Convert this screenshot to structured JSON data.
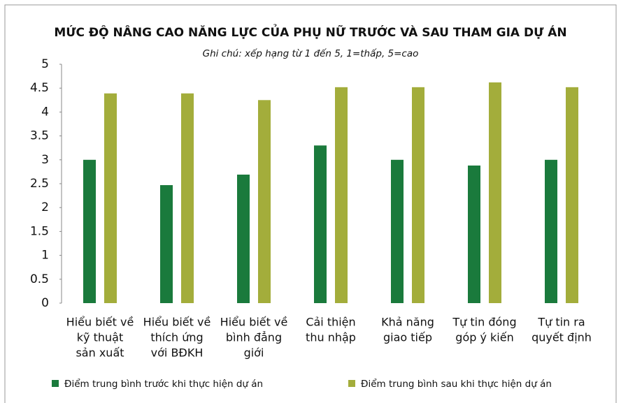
{
  "chart_data": {
    "type": "bar",
    "title": "MỨC ĐỘ NÂNG CAO NĂNG LỰC CỦA PHỤ NỮ TRƯỚC VÀ SAU THAM GIA DỰ ÁN",
    "subtitle": "Ghi chú: xếp hạng từ 1 đến 5, 1=thấp, 5=cao",
    "categories": [
      [
        "Hiểu biết về",
        "kỹ thuật",
        "sản xuất"
      ],
      [
        "Hiểu biết về",
        "thích ứng",
        "với BĐKH"
      ],
      [
        "Hiểu biết về",
        "bình đẳng",
        "giới"
      ],
      [
        "Cải thiện",
        "thu nhập"
      ],
      [
        "Khả năng",
        "giao tiếp"
      ],
      [
        "Tự tin đóng",
        "góp ý kiến"
      ],
      [
        "Tự tin ra",
        "quyết định"
      ]
    ],
    "series": [
      {
        "name": "Điểm trung bình trước khi thực hiện dự án",
        "color": "#1a7a3c",
        "values": [
          3.0,
          2.47,
          2.69,
          3.3,
          3.0,
          2.88,
          3.0
        ]
      },
      {
        "name": "Điểm trung bình sau khi thực hiện dự án",
        "color": "#a3ad3b",
        "values": [
          4.39,
          4.39,
          4.25,
          4.52,
          4.52,
          4.62,
          4.52
        ]
      }
    ],
    "ylim": [
      0,
      5
    ],
    "yticks": [
      0,
      0.5,
      1,
      1.5,
      2,
      2.5,
      3,
      3.5,
      4,
      4.5,
      5
    ],
    "legend": "bottom"
  }
}
